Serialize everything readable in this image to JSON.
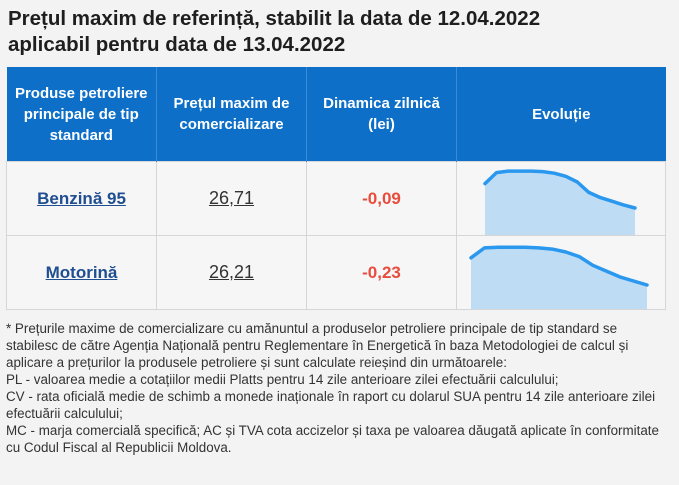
{
  "title_line1": "Prețul maxim de referință, stabilit la data de 12.04.2022",
  "title_line2": "aplicabil pentru data de 13.04.2022",
  "table": {
    "headers": {
      "product": "Produse petroliere principale de tip standard",
      "price": "Prețul maxim de comercializare",
      "change": "Dinamica zilnică (lei)",
      "trend": "Evoluție"
    },
    "rows": [
      {
        "product": "Benzină 95",
        "price": "26,71",
        "change": "-0,09",
        "trend_series": [
          0.72,
          0.93,
          0.96,
          0.96,
          0.96,
          0.95,
          0.92,
          0.86,
          0.75,
          0.55,
          0.45,
          0.38,
          0.31,
          0.25
        ]
      },
      {
        "product": "Motorină",
        "price": "26,21",
        "change": "-0,23",
        "trend_series": [
          0.78,
          0.95,
          0.96,
          0.96,
          0.96,
          0.95,
          0.93,
          0.88,
          0.8,
          0.65,
          0.55,
          0.45,
          0.38,
          0.31
        ]
      }
    ]
  },
  "colors": {
    "header_bg": "#0d6fc8",
    "negative": "#e74c3c",
    "link": "#1f4e91",
    "spark_line": "#2a98ee",
    "spark_fill": "#bfdcf5"
  },
  "notes": [
    "* Prețurile maxime de comercializare cu amănuntul a produselor petroliere principale de tip standard se stabilesc de către Agenția Națională pentru Reglementare în Energetică în baza Metodologiei de calcul și aplicare a prețurilor la produsele petroliere și sunt calculate reieșind din următoarele:",
    "PL - valoarea medie a cotațiilor medii Platts pentru 14 zile anterioare zilei efectuării calculului;",
    "CV - rata oficială medie de schimb a monede inaționale în raport cu dolarul SUA pentru 14 zile anterioare zilei efectuării calculului;",
    "MC - marja comercială specifică; AC și TVA cota accizelor și taxa pe valoarea dăugată aplicate în conformitate cu Codul Fiscal al Republicii Moldova."
  ]
}
